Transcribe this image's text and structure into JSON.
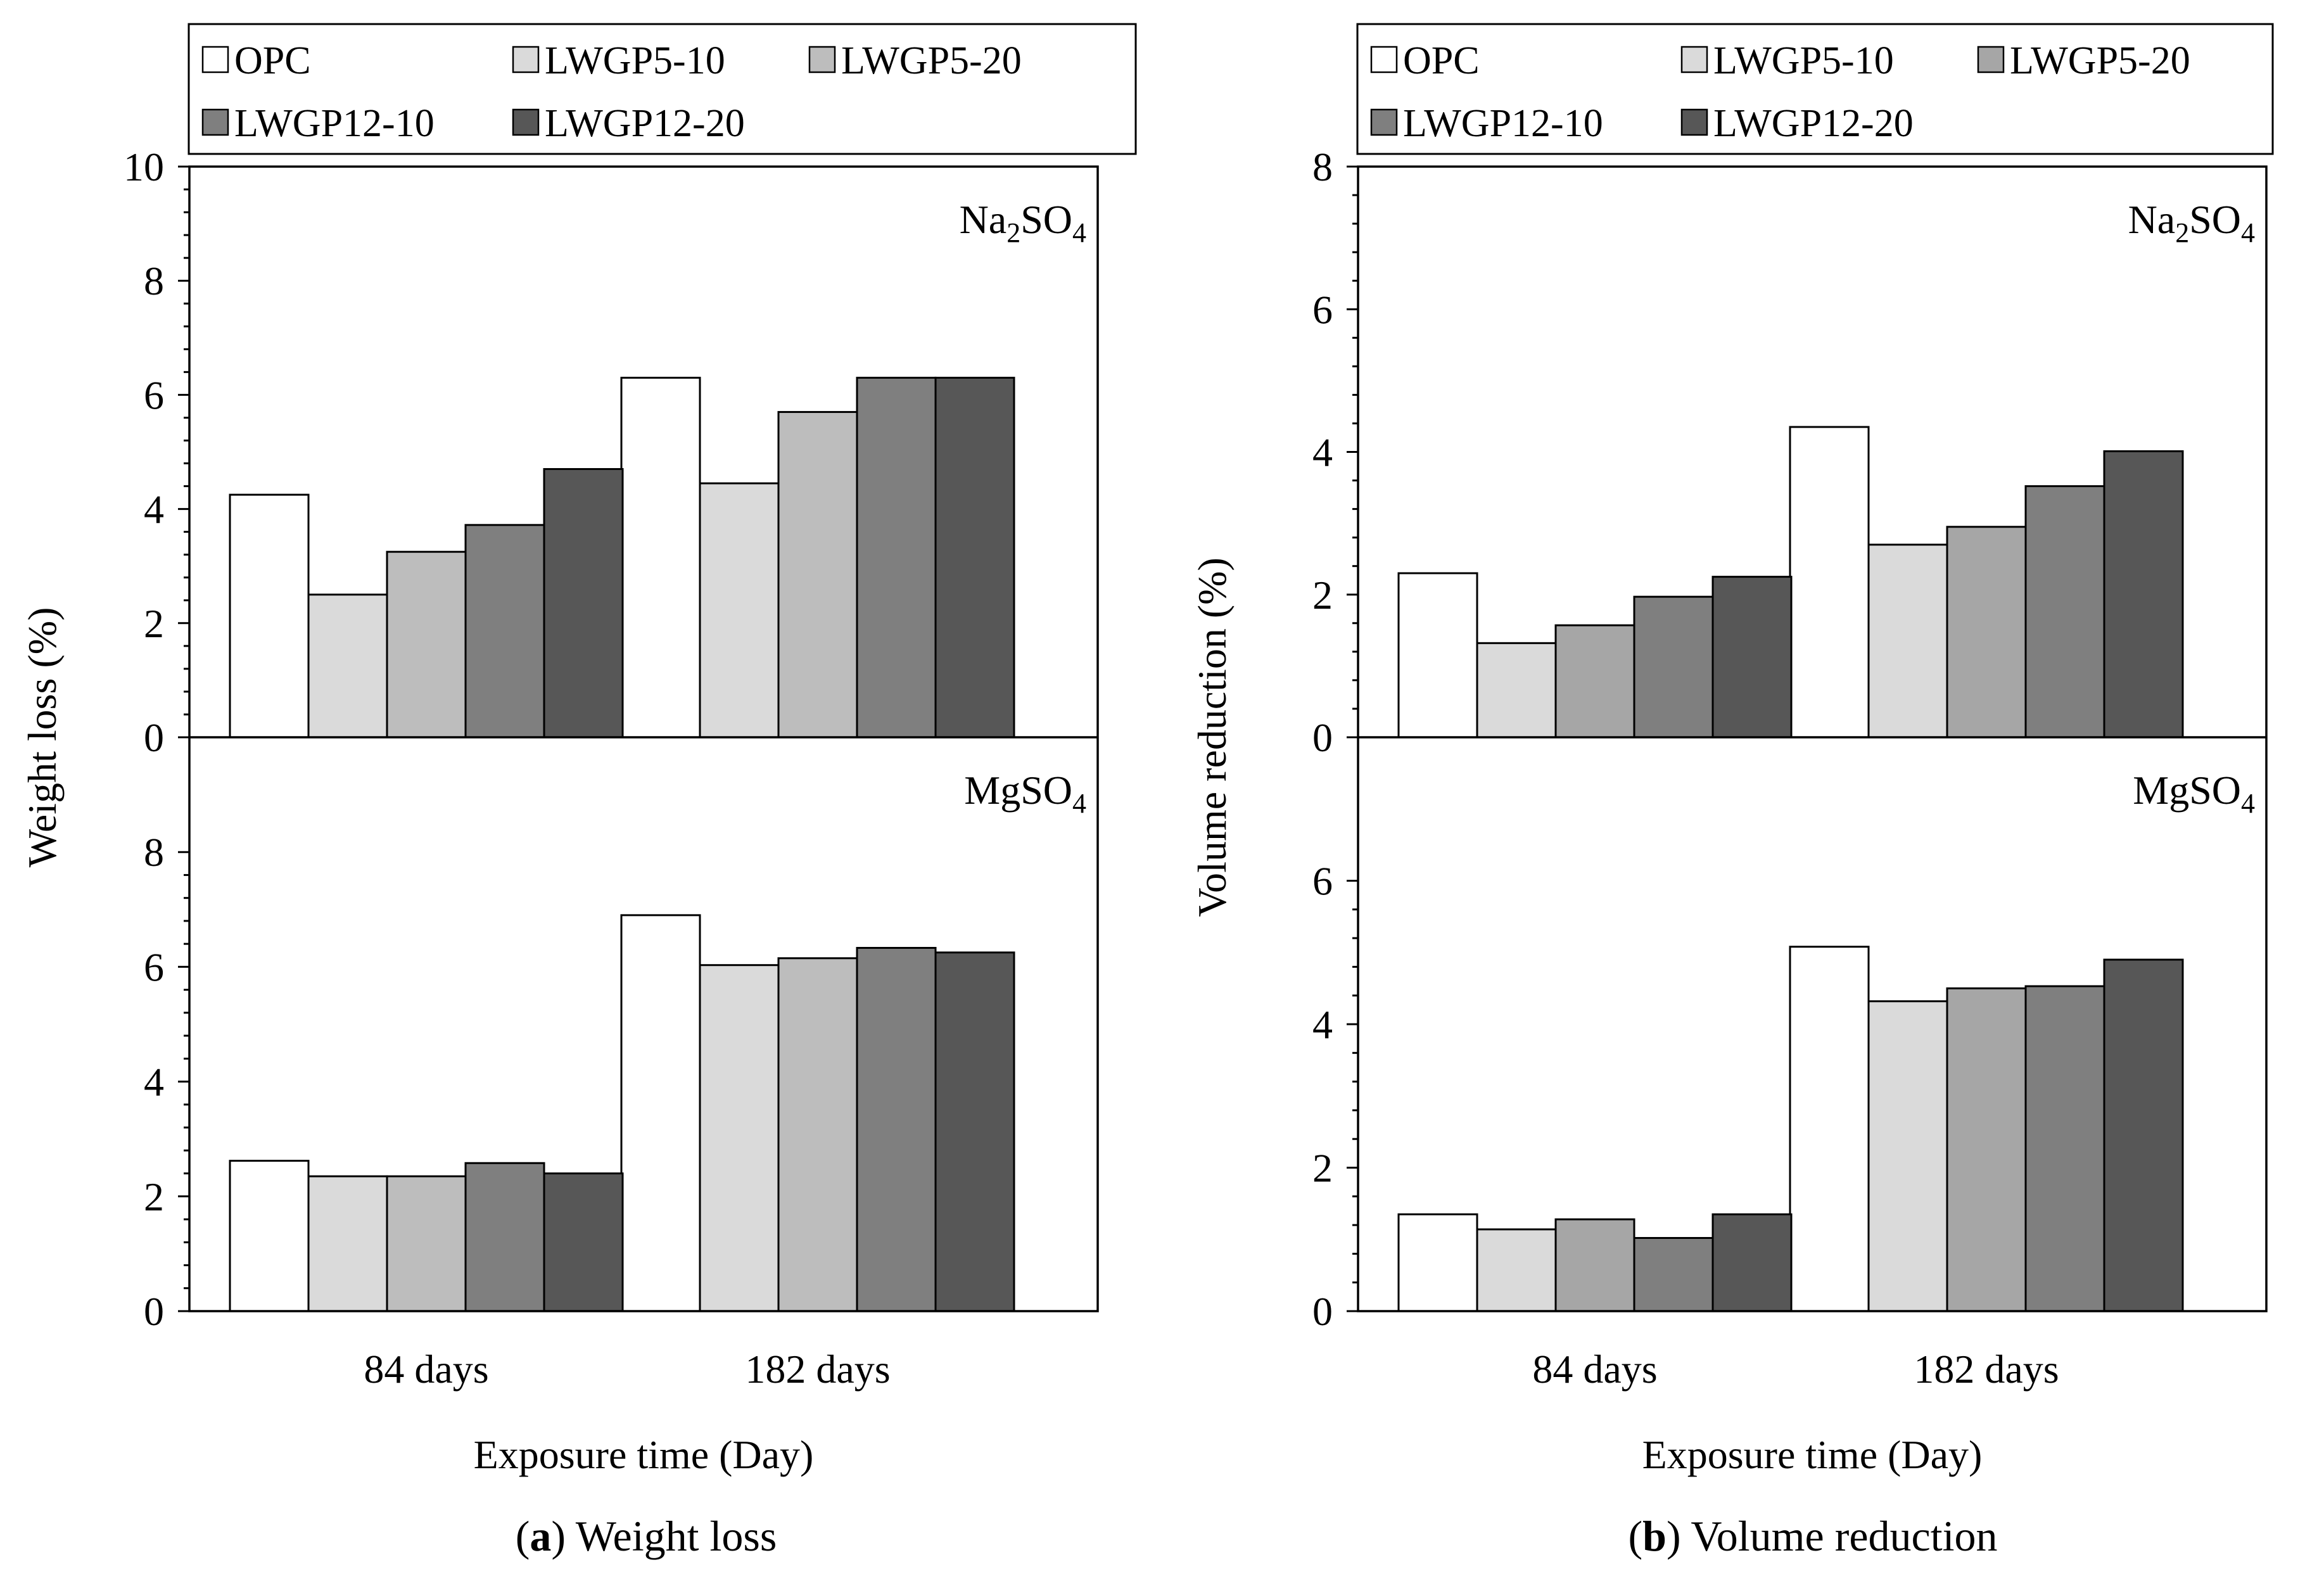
{
  "chart_data": [
    {
      "type": "bar",
      "caption": {
        "letter": "a",
        "text": ") Weight loss"
      },
      "xlabel": "Exposure time (Day)",
      "ylabel": "Weight loss (%)",
      "categories": [
        "84 days",
        "182 days"
      ],
      "legend": {
        "placement": "top",
        "entries": [
          "OPC",
          "LWGP5-10",
          "LWGP5-20",
          "LWGP12-10",
          "LWGP12-20"
        ]
      },
      "panels": [
        {
          "label_main": "Na",
          "label_sub1": "2",
          "label_mid": "SO",
          "label_sub2": "4",
          "ylim": [
            0,
            10
          ],
          "yticks": [
            0,
            2,
            4,
            6,
            8,
            10
          ],
          "ytick_labels": [
            "0",
            "2",
            "4",
            "6",
            "8",
            "10"
          ],
          "series": [
            {
              "name": "OPC",
              "values": [
                4.25,
                6.3
              ]
            },
            {
              "name": "LWGP5-10",
              "values": [
                2.5,
                4.45
              ]
            },
            {
              "name": "LWGP5-20",
              "values": [
                3.25,
                5.7
              ]
            },
            {
              "name": "LWGP12-10",
              "values": [
                3.72,
                6.3
              ]
            },
            {
              "name": "LWGP12-20",
              "values": [
                4.7,
                6.3
              ]
            }
          ]
        },
        {
          "label_main": "MgSO",
          "label_sub1": "4",
          "label_mid": "",
          "label_sub2": "",
          "ylim": [
            0,
            10
          ],
          "yticks": [
            0,
            2,
            4,
            6,
            8
          ],
          "ytick_labels": [
            "0",
            "2",
            "4",
            "6",
            "8"
          ],
          "series": [
            {
              "name": "OPC",
              "values": [
                2.62,
                6.9
              ]
            },
            {
              "name": "LWGP5-10",
              "values": [
                2.35,
                6.03
              ]
            },
            {
              "name": "LWGP5-20",
              "values": [
                2.35,
                6.15
              ]
            },
            {
              "name": "LWGP12-10",
              "values": [
                2.58,
                6.33
              ]
            },
            {
              "name": "LWGP12-20",
              "values": [
                2.4,
                6.25
              ]
            }
          ]
        }
      ]
    },
    {
      "type": "bar",
      "caption": {
        "letter": "b",
        "text": ") Volume reduction"
      },
      "xlabel": "Exposure time (Day)",
      "ylabel": "Volume reduction (%)",
      "categories": [
        "84 days",
        "182 days"
      ],
      "legend": {
        "placement": "top",
        "entries": [
          "OPC",
          "LWGP5-10",
          "LWGP5-20",
          "LWGP12-10",
          "LWGP12-20"
        ]
      },
      "panels": [
        {
          "label_main": "Na",
          "label_sub1": "2",
          "label_mid": "SO",
          "label_sub2": "4",
          "ylim": [
            0,
            8
          ],
          "yticks": [
            0,
            2,
            4,
            6,
            8
          ],
          "ytick_labels": [
            "0",
            "2",
            "4",
            "6",
            "8"
          ],
          "series": [
            {
              "name": "OPC",
              "values": [
                2.3,
                4.35
              ]
            },
            {
              "name": "LWGP5-10",
              "values": [
                1.32,
                2.7
              ]
            },
            {
              "name": "LWGP5-20",
              "values": [
                1.57,
                2.95
              ]
            },
            {
              "name": "LWGP12-10",
              "values": [
                1.97,
                3.52
              ]
            },
            {
              "name": "LWGP12-20",
              "values": [
                2.25,
                4.01
              ]
            }
          ]
        },
        {
          "label_main": "MgSO",
          "label_sub1": "4",
          "label_mid": "",
          "label_sub2": "",
          "ylim": [
            0,
            8
          ],
          "yticks": [
            0,
            2,
            4,
            6
          ],
          "ytick_labels": [
            "0",
            "2",
            "4",
            "6"
          ],
          "series": [
            {
              "name": "OPC",
              "values": [
                1.35,
                5.08
              ]
            },
            {
              "name": "LWGP5-10",
              "values": [
                1.14,
                4.32
              ]
            },
            {
              "name": "LWGP5-20",
              "values": [
                1.28,
                4.5
              ]
            },
            {
              "name": "LWGP12-10",
              "values": [
                1.02,
                4.53
              ]
            },
            {
              "name": "LWGP12-20",
              "values": [
                1.35,
                4.9
              ]
            }
          ]
        }
      ]
    }
  ],
  "colors": {
    "series": [
      "#ffffff",
      "#dadada",
      "#bdbdbd",
      "#7f7f7f",
      "#575757"
    ],
    "series_b": [
      "#ffffff",
      "#dadada",
      "#a6a6a6",
      "#7f7f7f",
      "#575757"
    ],
    "stroke": "#000000"
  }
}
